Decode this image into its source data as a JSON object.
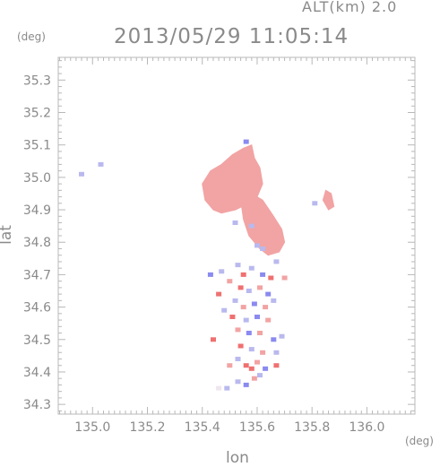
{
  "header": {
    "altitude_text": "ALT(km)  2.0",
    "timestamp": "2013/05/29 11:05:14"
  },
  "chart_data": {
    "type": "scatter",
    "title": "2013/05/29 11:05:14",
    "xlabel": "lon",
    "ylabel": "lat",
    "x_unit": "(deg)",
    "y_unit": "(deg)",
    "xlim": [
      134.875,
      136.175
    ],
    "ylim": [
      34.27,
      35.37
    ],
    "xticks": [
      "135.0",
      "135.2",
      "135.4",
      "135.6",
      "135.8",
      "136.0"
    ],
    "yticks": [
      "34.3",
      "34.4",
      "34.5",
      "34.6",
      "34.7",
      "34.8",
      "34.9",
      "35.0",
      "35.1",
      "35.2",
      "35.3"
    ],
    "grid": false,
    "colors": {
      "positive": "#f2a3a3",
      "positive_strong": "#f07070",
      "negative": "#b9b9ef",
      "negative_strong": "#8a8af0",
      "neutral": "#efe6ee"
    },
    "regions": [
      {
        "name": "north-east-patch",
        "sign": "positive",
        "points": [
          [
            135.4,
            34.98
          ],
          [
            135.43,
            35.02
          ],
          [
            135.47,
            35.04
          ],
          [
            135.51,
            35.07
          ],
          [
            135.55,
            35.09
          ],
          [
            135.58,
            35.1
          ],
          [
            135.59,
            35.06
          ],
          [
            135.61,
            35.03
          ],
          [
            135.62,
            34.98
          ],
          [
            135.6,
            34.94
          ],
          [
            135.57,
            34.92
          ],
          [
            135.52,
            34.9
          ],
          [
            135.47,
            34.89
          ],
          [
            135.44,
            34.9
          ],
          [
            135.41,
            34.93
          ]
        ]
      },
      {
        "name": "south-east-patch",
        "sign": "positive",
        "points": [
          [
            135.54,
            34.93
          ],
          [
            135.58,
            34.95
          ],
          [
            135.62,
            34.93
          ],
          [
            135.66,
            34.88
          ],
          [
            135.69,
            34.84
          ],
          [
            135.7,
            34.8
          ],
          [
            135.68,
            34.77
          ],
          [
            135.64,
            34.76
          ],
          [
            135.61,
            34.78
          ],
          [
            135.57,
            34.82
          ],
          [
            135.55,
            34.87
          ]
        ]
      },
      {
        "name": "east-patch",
        "sign": "positive",
        "points": [
          [
            135.85,
            34.96
          ],
          [
            135.87,
            34.95
          ],
          [
            135.88,
            34.91
          ],
          [
            135.86,
            34.9
          ],
          [
            135.84,
            34.93
          ]
        ]
      }
    ],
    "points": [
      {
        "lon": 135.03,
        "lat": 35.04,
        "sign": "negative"
      },
      {
        "lon": 134.96,
        "lat": 35.01,
        "sign": "negative"
      },
      {
        "lon": 135.81,
        "lat": 34.92,
        "sign": "negative"
      },
      {
        "lon": 135.6,
        "lat": 34.79,
        "sign": "negative"
      },
      {
        "lon": 135.62,
        "lat": 34.78,
        "sign": "negative"
      },
      {
        "lon": 135.58,
        "lat": 34.85,
        "sign": "negative"
      },
      {
        "lon": 135.52,
        "lat": 34.86,
        "sign": "negative"
      },
      {
        "lon": 135.56,
        "lat": 35.11,
        "sign": "negative_strong"
      },
      {
        "lon": 135.53,
        "lat": 34.73,
        "sign": "negative"
      },
      {
        "lon": 135.55,
        "lat": 34.7,
        "sign": "positive_strong"
      },
      {
        "lon": 135.58,
        "lat": 34.72,
        "sign": "negative"
      },
      {
        "lon": 135.62,
        "lat": 34.7,
        "sign": "negative_strong"
      },
      {
        "lon": 135.47,
        "lat": 34.71,
        "sign": "negative"
      },
      {
        "lon": 135.43,
        "lat": 34.7,
        "sign": "negative_strong"
      },
      {
        "lon": 135.5,
        "lat": 34.68,
        "sign": "positive"
      },
      {
        "lon": 135.54,
        "lat": 34.66,
        "sign": "positive_strong"
      },
      {
        "lon": 135.57,
        "lat": 34.65,
        "sign": "negative"
      },
      {
        "lon": 135.61,
        "lat": 34.66,
        "sign": "positive"
      },
      {
        "lon": 135.64,
        "lat": 34.64,
        "sign": "negative_strong"
      },
      {
        "lon": 135.66,
        "lat": 34.62,
        "sign": "negative"
      },
      {
        "lon": 135.46,
        "lat": 34.64,
        "sign": "positive_strong"
      },
      {
        "lon": 135.52,
        "lat": 34.62,
        "sign": "negative"
      },
      {
        "lon": 135.55,
        "lat": 34.6,
        "sign": "positive"
      },
      {
        "lon": 135.59,
        "lat": 34.61,
        "sign": "negative_strong"
      },
      {
        "lon": 135.63,
        "lat": 34.6,
        "sign": "positive"
      },
      {
        "lon": 135.48,
        "lat": 34.59,
        "sign": "negative"
      },
      {
        "lon": 135.51,
        "lat": 34.57,
        "sign": "positive_strong"
      },
      {
        "lon": 135.56,
        "lat": 34.56,
        "sign": "negative"
      },
      {
        "lon": 135.6,
        "lat": 34.57,
        "sign": "negative_strong"
      },
      {
        "lon": 135.64,
        "lat": 34.56,
        "sign": "positive"
      },
      {
        "lon": 135.53,
        "lat": 34.53,
        "sign": "positive"
      },
      {
        "lon": 135.57,
        "lat": 34.52,
        "sign": "negative_strong"
      },
      {
        "lon": 135.61,
        "lat": 34.52,
        "sign": "positive"
      },
      {
        "lon": 135.66,
        "lat": 34.5,
        "sign": "negative_strong"
      },
      {
        "lon": 135.69,
        "lat": 34.51,
        "sign": "negative"
      },
      {
        "lon": 135.44,
        "lat": 34.5,
        "sign": "positive_strong"
      },
      {
        "lon": 135.54,
        "lat": 34.48,
        "sign": "positive_strong"
      },
      {
        "lon": 135.58,
        "lat": 34.47,
        "sign": "negative"
      },
      {
        "lon": 135.62,
        "lat": 34.46,
        "sign": "positive"
      },
      {
        "lon": 135.67,
        "lat": 34.46,
        "sign": "negative"
      },
      {
        "lon": 135.53,
        "lat": 34.44,
        "sign": "negative"
      },
      {
        "lon": 135.56,
        "lat": 34.42,
        "sign": "positive_strong"
      },
      {
        "lon": 135.6,
        "lat": 34.43,
        "sign": "positive"
      },
      {
        "lon": 135.63,
        "lat": 34.41,
        "sign": "negative_strong"
      },
      {
        "lon": 135.67,
        "lat": 34.42,
        "sign": "positive_strong"
      },
      {
        "lon": 135.5,
        "lat": 34.42,
        "sign": "positive"
      },
      {
        "lon": 135.58,
        "lat": 34.41,
        "sign": "positive_strong"
      },
      {
        "lon": 135.61,
        "lat": 34.39,
        "sign": "negative"
      },
      {
        "lon": 135.53,
        "lat": 34.37,
        "sign": "negative"
      },
      {
        "lon": 135.56,
        "lat": 34.36,
        "sign": "negative_strong"
      },
      {
        "lon": 135.59,
        "lat": 34.38,
        "sign": "positive"
      },
      {
        "lon": 135.49,
        "lat": 34.35,
        "sign": "negative"
      },
      {
        "lon": 135.46,
        "lat": 34.35,
        "sign": "neutral"
      },
      {
        "lon": 135.67,
        "lat": 34.74,
        "sign": "negative"
      },
      {
        "lon": 135.7,
        "lat": 34.69,
        "sign": "positive"
      },
      {
        "lon": 135.65,
        "lat": 34.69,
        "sign": "positive_strong"
      }
    ]
  }
}
